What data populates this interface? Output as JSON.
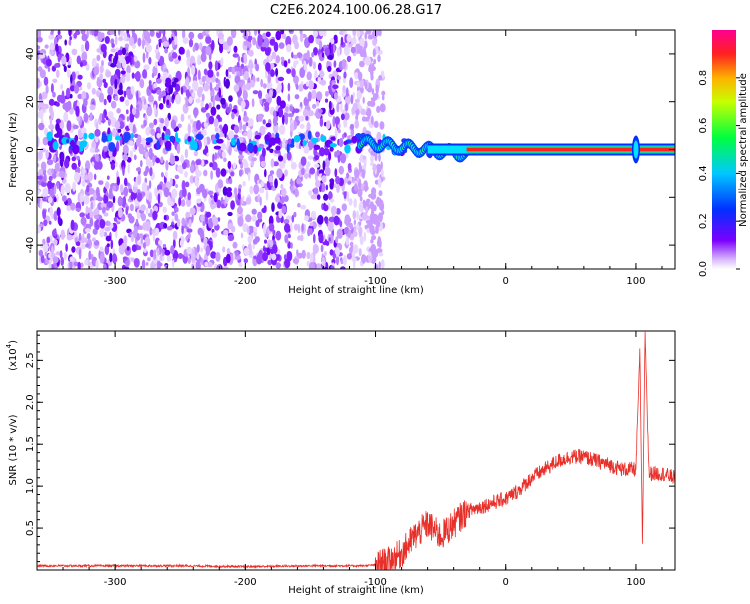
{
  "title": "C2E6.2024.100.06.28.G17",
  "chart_data": [
    {
      "type": "heatmap",
      "title": "C2E6.2024.100.06.28.G17",
      "xlabel": "Height of straight line (km)",
      "ylabel": "Frequency (Hz)",
      "xlim": [
        -360,
        130
      ],
      "ylim": [
        -50,
        50
      ],
      "xticks": [
        -300,
        -200,
        -100,
        0,
        100
      ],
      "yticks": [
        -40,
        -20,
        0,
        20,
        40
      ],
      "colorbar": {
        "label": "Normalized spectral amplitude",
        "ticks": [
          0.0,
          0.2,
          0.4,
          0.6,
          0.8
        ],
        "range": [
          0,
          1
        ]
      },
      "features": {
        "noise_region_x": [
          -360,
          -100
        ],
        "tone_frequency": 0,
        "tone_x": [
          -30,
          130
        ],
        "spike_x": 100
      },
      "grid": false
    },
    {
      "type": "line",
      "xlabel": "Height of straight line (km)",
      "ylabel": "SNR (10 * v/v)",
      "ylabel_scale": "(x10",
      "ylabel_scale_exp": "4",
      "ylabel_scale_close": ")",
      "xlim": [
        -360,
        130
      ],
      "ylim": [
        0,
        2.85
      ],
      "xticks": [
        -300,
        -200,
        -100,
        0,
        100
      ],
      "yticks": [
        0.5,
        1.0,
        1.5,
        2.0,
        2.5
      ],
      "ytick_labels": [
        "0.5",
        "1.0",
        "1.5",
        "2.0",
        "2.5"
      ],
      "color": "#e8302a",
      "series": [
        {
          "x": [
            -360,
            -300,
            -250,
            -200,
            -150,
            -110,
            -100,
            -90,
            -80,
            -70,
            -60,
            -50,
            -40,
            -30,
            -20,
            -10,
            0,
            10,
            20,
            30,
            40,
            50,
            60,
            70,
            80,
            90,
            100,
            103,
            105,
            107,
            110,
            120,
            130
          ],
          "y": [
            0.05,
            0.05,
            0.05,
            0.04,
            0.05,
            0.05,
            0.06,
            0.1,
            0.2,
            0.4,
            0.55,
            0.4,
            0.55,
            0.7,
            0.75,
            0.8,
            0.85,
            0.95,
            1.1,
            1.2,
            1.3,
            1.35,
            1.35,
            1.3,
            1.25,
            1.2,
            1.2,
            2.6,
            0.3,
            2.85,
            1.15,
            1.15,
            1.1
          ]
        }
      ],
      "grid": false
    }
  ]
}
